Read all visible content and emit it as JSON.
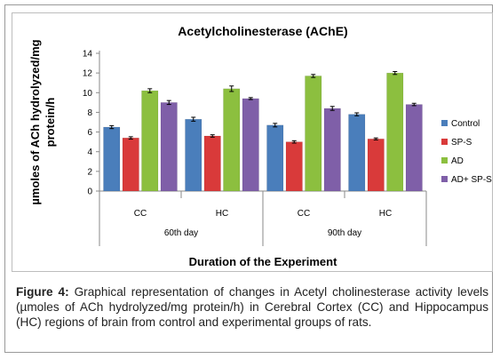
{
  "caption": {
    "label": "Figure 4:",
    "text": "Graphical representation of changes in Acetyl cholinesterase activity levels (µmoles of ACh hydrolyzed/mg protein/h) in Cerebral Cortex (CC) and Hippocampus (HC) regions of brain from control and experimental groups of rats."
  },
  "chart_data": {
    "type": "bar",
    "title": "Acetylcholinesterase (AChE)",
    "ylabel_lines": [
      "µmoles of ACh hydrolyzed/mg",
      "protein/h"
    ],
    "xlabel": "Duration of  the Experiment",
    "ylim": [
      0,
      14
    ],
    "yticks": [
      0,
      2,
      4,
      6,
      8,
      10,
      12,
      14
    ],
    "grid": false,
    "legend_position": "right",
    "categories": [
      "CC",
      "HC",
      "CC",
      "HC"
    ],
    "groups": [
      {
        "label": "60th day",
        "categories": [
          "CC",
          "HC"
        ]
      },
      {
        "label": "90th day",
        "categories": [
          "CC",
          "HC"
        ]
      }
    ],
    "series": [
      {
        "name": "Control",
        "color": "#4a7ebb",
        "values": [
          6.5,
          7.3,
          6.7,
          7.8
        ],
        "errors": [
          0.15,
          0.2,
          0.18,
          0.15
        ]
      },
      {
        "name": "SP-S",
        "color": "#d93a3a",
        "values": [
          5.4,
          5.6,
          5.0,
          5.3
        ],
        "errors": [
          0.12,
          0.12,
          0.12,
          0.1
        ]
      },
      {
        "name": "AD",
        "color": "#8cbf3f",
        "values": [
          10.2,
          10.4,
          11.7,
          12.0
        ],
        "errors": [
          0.2,
          0.28,
          0.15,
          0.15
        ]
      },
      {
        "name": "AD+ SP-S",
        "color": "#7f5fa8",
        "values": [
          9.0,
          9.4,
          8.4,
          8.8
        ],
        "errors": [
          0.2,
          0.1,
          0.2,
          0.12
        ]
      }
    ]
  }
}
